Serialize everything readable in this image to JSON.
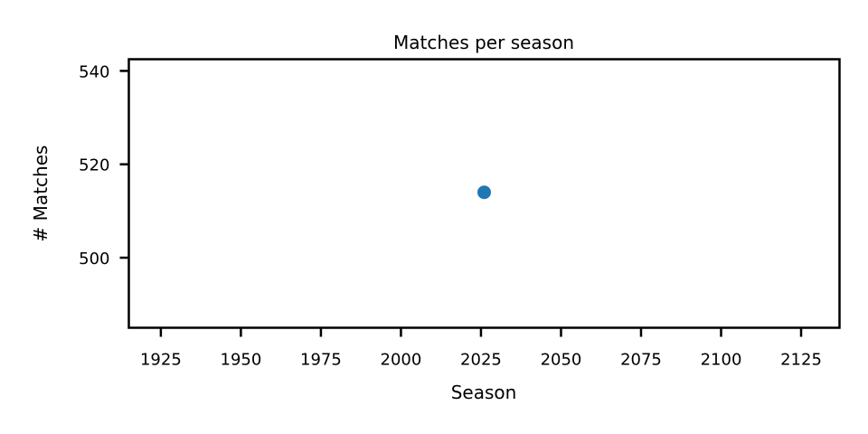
{
  "chart_data": {
    "type": "scatter",
    "title": "Matches per season",
    "xlabel": "Season",
    "ylabel": "# Matches",
    "xlim": [
      1915,
      2137
    ],
    "ylim": [
      485,
      542.5
    ],
    "xticks": [
      1925,
      1950,
      1975,
      2000,
      2025,
      2050,
      2075,
      2100,
      2125
    ],
    "yticks": [
      500,
      520,
      540
    ],
    "grid": false,
    "legend": "none",
    "points": [
      {
        "x": 2026,
        "y": 514
      }
    ],
    "colors": {
      "point": "#1f77b4",
      "axes": "#000000",
      "background": "#ffffff"
    }
  }
}
